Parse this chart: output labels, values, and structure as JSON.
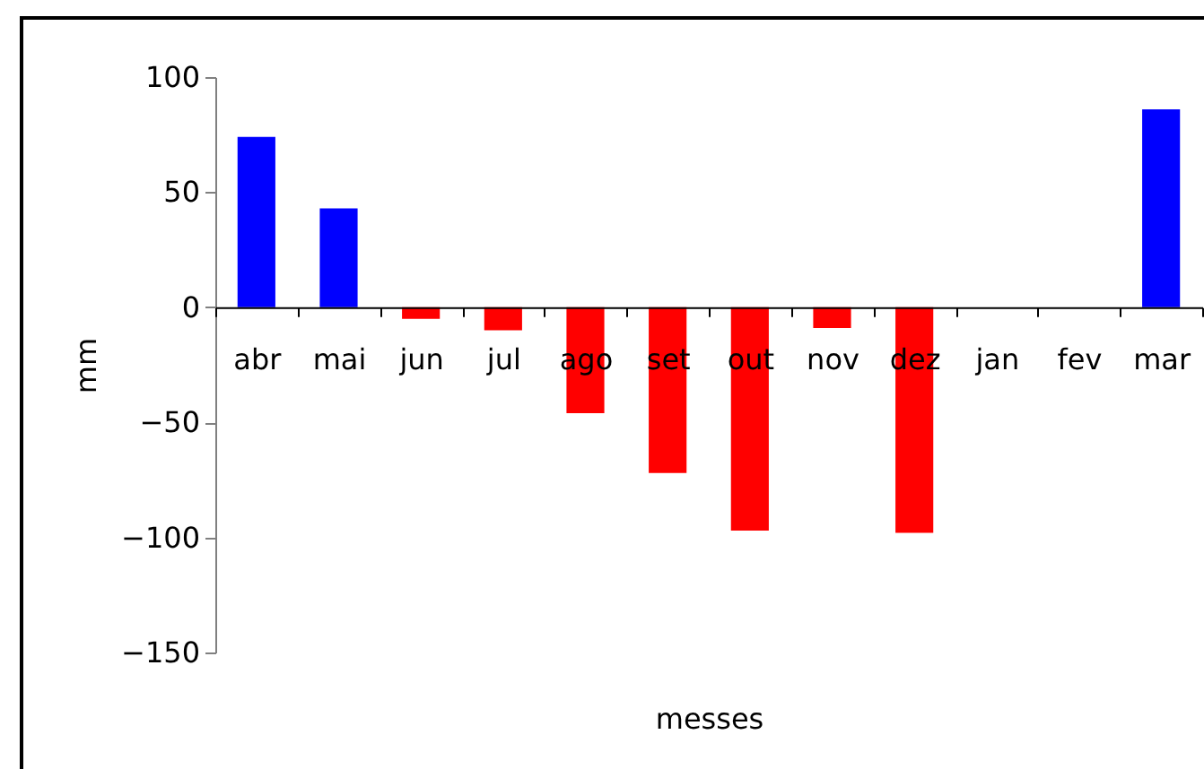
{
  "chart_data": {
    "type": "bar",
    "xlabel": "messes",
    "ylabel": "mm",
    "categories": [
      "abr",
      "mai",
      "jun",
      "jul",
      "ago",
      "set",
      "out",
      "nov",
      "dez",
      "jan",
      "fev",
      "mar"
    ],
    "values": [
      74,
      43,
      -5,
      -10,
      -46,
      -72,
      -97,
      -9,
      -98,
      null,
      null,
      86
    ],
    "colors": [
      "#0000ff",
      "#0000ff",
      "#ff0000",
      "#ff0000",
      "#ff0000",
      "#ff0000",
      "#ff0000",
      "#ff0000",
      "#ff0000",
      null,
      null,
      "#0000ff"
    ],
    "ylim": [
      -150,
      100
    ],
    "yticks": [
      -150,
      -100,
      -50,
      0,
      50,
      100
    ]
  }
}
